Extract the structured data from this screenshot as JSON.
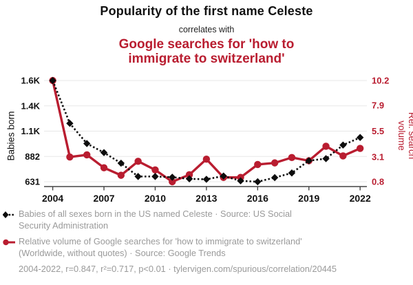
{
  "header": {
    "title": "Popularity of the first name Celeste",
    "connector": "correlates with",
    "subtitle": "Google searches for 'how to immigrate to switzerland'"
  },
  "colors": {
    "accent_red": "#b91d30",
    "series_black": "#0d0d0d",
    "grid": "#e7e7e7",
    "axis_line": "#444444",
    "legend_text": "#9a9a9a"
  },
  "chart_data": {
    "type": "line",
    "title": "Popularity of the first name Celeste correlates with Google searches for 'how to immigrate to switzerland'",
    "x": [
      2004,
      2005,
      2006,
      2007,
      2008,
      2009,
      2010,
      2011,
      2012,
      2013,
      2014,
      2015,
      2016,
      2017,
      2018,
      2019,
      2020,
      2021,
      2022
    ],
    "x_tick_labels": [
      "2004",
      "2007",
      "2010",
      "2013",
      "2016",
      "2019",
      "2022"
    ],
    "x_tick_values": [
      2004,
      2007,
      2010,
      2013,
      2016,
      2019,
      2022
    ],
    "grid": true,
    "legend_position": "bottom",
    "left_axis": {
      "label": "Babies born",
      "tick_labels": [
        "1.6K",
        "1.4K",
        "1.1K",
        "882",
        "631"
      ],
      "tick_values": [
        1635,
        1384,
        1133,
        882,
        631
      ],
      "range": [
        631,
        1635
      ]
    },
    "right_axis": {
      "label": "Rel. search volume",
      "tick_labels": [
        "10.2",
        "7.9",
        "5.5",
        "3.1",
        "0.8"
      ],
      "tick_values": [
        10.2,
        7.9,
        5.5,
        3.1,
        0.8
      ],
      "range": [
        0.8,
        10.2
      ]
    },
    "series": [
      {
        "name": "Babies of all sexes born in the US named Celeste",
        "axis": "left",
        "color": "#0d0d0d",
        "line_style": "dashed",
        "marker": "diamond",
        "values": [
          1635,
          1210,
          1010,
          920,
          815,
          683,
          683,
          676,
          660,
          655,
          688,
          640,
          631,
          672,
          718,
          840,
          860,
          995,
          1070
        ]
      },
      {
        "name": "Relative volume of Google searches for 'how to immigrate to switzerland'",
        "axis": "right",
        "color": "#b91d30",
        "line_style": "solid",
        "marker": "circle",
        "values": [
          10.2,
          3.1,
          3.3,
          2.1,
          1.4,
          2.7,
          1.9,
          0.8,
          1.45,
          2.9,
          1.2,
          1.2,
          2.4,
          2.55,
          3.05,
          2.75,
          4.1,
          3.2,
          3.9
        ]
      }
    ]
  },
  "legend": {
    "items": [
      {
        "marker": "black-diamond-dashed-icon",
        "text": "Babies of all sexes born in the US named Celeste · Source: US Social Security Administration"
      },
      {
        "marker": "red-circle-solid-icon",
        "text": "Relative volume of Google searches for 'how to immigrate to switzerland' (Worldwide, without quotes) · Source: Google Trends"
      }
    ],
    "footnote": "2004-2022, r=0.847, r²=0.717, p<0.01 · tylervigen.com/spurious/correlation/20445"
  }
}
